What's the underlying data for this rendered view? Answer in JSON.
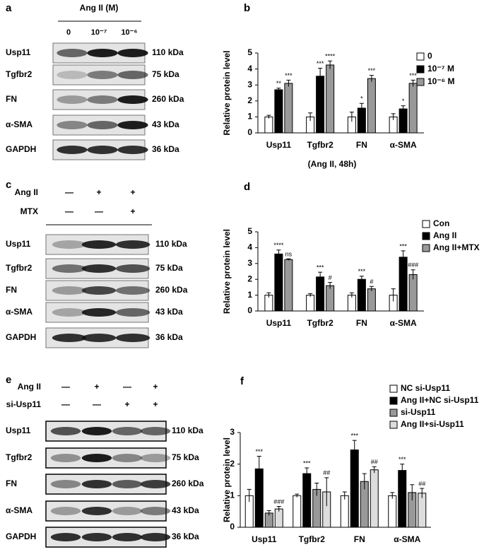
{
  "panels": [
    {
      "label": "a",
      "header": "Ang II (M)",
      "columns": [
        "0",
        "10⁻⁷",
        "10⁻⁶"
      ],
      "rows": [
        {
          "name": "Usp11",
          "kda": "110 kDa"
        },
        {
          "name": "Tgfbr2",
          "kda": "75 kDa"
        },
        {
          "name": "FN",
          "kda": "260 kDa"
        },
        {
          "name": "α-SMA",
          "kda": "43 kDa"
        },
        {
          "name": "GAPDH",
          "kda": "36 kDa"
        }
      ]
    },
    {
      "label": "c",
      "conditions": [
        {
          "name": "Ang II",
          "marks": [
            "—",
            "+",
            "+"
          ]
        },
        {
          "name": "MTX",
          "marks": [
            "—",
            "—",
            "+"
          ]
        }
      ],
      "rows": [
        {
          "name": "Usp11",
          "kda": "110 kDa"
        },
        {
          "name": "Tgfbr2",
          "kda": "75 kDa"
        },
        {
          "name": "FN",
          "kda": "260 kDa"
        },
        {
          "name": "α-SMA",
          "kda": "43 kDa"
        },
        {
          "name": "GAPDH",
          "kda": "36 kDa"
        }
      ]
    },
    {
      "label": "e",
      "conditions": [
        {
          "name": "Ang II",
          "marks": [
            "—",
            "+",
            "—",
            "+"
          ]
        },
        {
          "name": "si-Usp11",
          "marks": [
            "—",
            "—",
            "+",
            "+"
          ]
        }
      ],
      "rows": [
        {
          "name": "Usp11",
          "kda": "110 kDa"
        },
        {
          "name": "Tgfbr2",
          "kda": "75 kDa"
        },
        {
          "name": "FN",
          "kda": "260 kDa"
        },
        {
          "name": "α-SMA",
          "kda": "43 kDa"
        },
        {
          "name": "GAPDH",
          "kda": "36 kDa"
        }
      ]
    }
  ],
  "chart_data": [
    {
      "type": "bar",
      "label": "b",
      "ylabel": "Relative protein level",
      "note": "(Ang II, 48h)",
      "categories": [
        "Usp11",
        "Tgfbr2",
        "FN",
        "α-SMA"
      ],
      "ylim": [
        0,
        5
      ],
      "yticks": [
        0,
        1,
        2,
        3,
        4,
        5
      ],
      "series": [
        {
          "name": "0",
          "color": "#ffffff",
          "values": [
            1,
            1,
            1,
            1
          ],
          "errors": [
            0.1,
            0.25,
            0.3,
            0.2
          ],
          "annotations": [
            null,
            null,
            null,
            null
          ]
        },
        {
          "name": "10⁻⁷ M",
          "color": "#000000",
          "values": [
            2.7,
            3.55,
            1.55,
            1.5
          ],
          "errors": [
            0.1,
            0.5,
            0.3,
            0.2
          ],
          "annotations": [
            "**",
            "***",
            "*",
            "*"
          ]
        },
        {
          "name": "10⁻⁶ M",
          "color": "#999999",
          "values": [
            3.1,
            4.25,
            3.4,
            3.1
          ],
          "errors": [
            0.2,
            0.25,
            0.2,
            0.2
          ],
          "annotations": [
            "***",
            "****",
            "***",
            "***"
          ]
        }
      ]
    },
    {
      "type": "bar",
      "label": "d",
      "ylabel": "Relative protein level",
      "categories": [
        "Usp11",
        "Tgfbr2",
        "FN",
        "α-SMA"
      ],
      "ylim": [
        0,
        5
      ],
      "yticks": [
        0,
        1,
        2,
        3,
        4,
        5
      ],
      "series": [
        {
          "name": "Con",
          "color": "#ffffff",
          "values": [
            1,
            1,
            1,
            1
          ],
          "errors": [
            0.15,
            0.1,
            0.15,
            0.4
          ],
          "annotations": [
            null,
            null,
            null,
            null
          ]
        },
        {
          "name": "Ang II",
          "color": "#000000",
          "values": [
            3.6,
            2.15,
            2.0,
            3.4
          ],
          "errors": [
            0.25,
            0.3,
            0.2,
            0.4
          ],
          "annotations": [
            "****",
            "***",
            "***",
            "***"
          ]
        },
        {
          "name": "Ang II+MTX",
          "color": "#999999",
          "values": [
            3.25,
            1.6,
            1.4,
            2.3
          ],
          "errors": [
            0.05,
            0.2,
            0.15,
            0.3
          ],
          "annotations": [
            "ns",
            "#",
            "#",
            "###"
          ]
        }
      ]
    },
    {
      "type": "bar",
      "label": "f",
      "ylabel": "Relative protein level",
      "categories": [
        "Usp11",
        "Tgfbr2",
        "FN",
        "α-SMA"
      ],
      "ylim": [
        0,
        3
      ],
      "yticks": [
        0,
        1,
        2,
        3
      ],
      "series": [
        {
          "name": "NC si-Usp11",
          "color": "#ffffff",
          "values": [
            1,
            1,
            1,
            1
          ],
          "errors": [
            0.2,
            0.05,
            0.12,
            0.1
          ],
          "annotations": [
            null,
            null,
            null,
            null
          ]
        },
        {
          "name": "Ang II+NC si-Usp11",
          "color": "#000000",
          "values": [
            1.85,
            1.7,
            2.45,
            1.8
          ],
          "errors": [
            0.4,
            0.18,
            0.3,
            0.2
          ],
          "annotations": [
            "***",
            "***",
            "***",
            "***"
          ]
        },
        {
          "name": "si-Usp11",
          "color": "#999999",
          "values": [
            0.45,
            1.2,
            1.45,
            1.1
          ],
          "errors": [
            0.08,
            0.2,
            0.25,
            0.25
          ],
          "annotations": [
            null,
            null,
            null,
            null
          ]
        },
        {
          "name": "Ang II+si-Usp11",
          "color": "#dddddd",
          "values": [
            0.58,
            1.12,
            1.82,
            1.08
          ],
          "errors": [
            0.08,
            0.45,
            0.1,
            0.15
          ],
          "annotations": [
            "###",
            "##",
            "##",
            "##"
          ]
        }
      ]
    }
  ]
}
